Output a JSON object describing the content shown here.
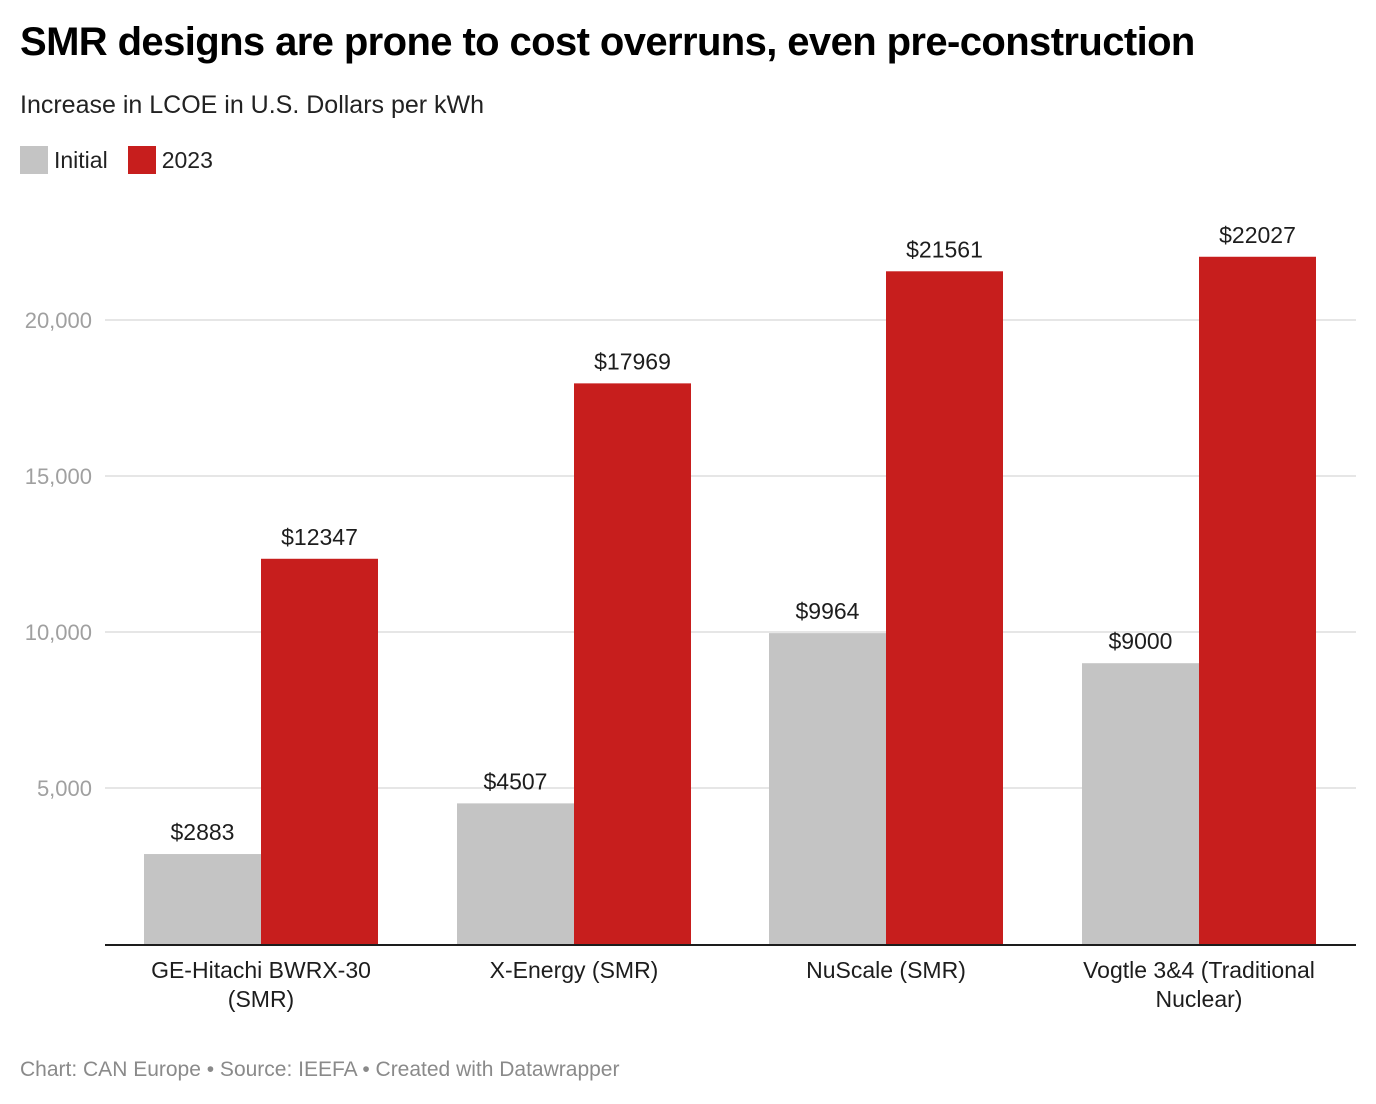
{
  "chart_data": {
    "type": "bar",
    "title": "SMR designs are prone to cost overruns, even pre-construction",
    "subtitle": "Increase in LCOE in U.S. Dollars per kWh",
    "xlabel": "",
    "ylabel": "",
    "categories": [
      [
        "GE-Hitachi BWRX-30",
        "(SMR)"
      ],
      [
        "X-Energy (SMR)"
      ],
      [
        "NuScale (SMR)"
      ],
      [
        "Vogtle 3&4 (Traditional",
        "Nuclear)"
      ]
    ],
    "category_names": [
      "GE-Hitachi BWRX-30 (SMR)",
      "X-Energy (SMR)",
      "NuScale (SMR)",
      "Vogtle 3&4 (Traditional Nuclear)"
    ],
    "series": [
      {
        "name": "Initial",
        "color": "#c4c4c4",
        "values": [
          2883,
          4507,
          9964,
          9000
        ],
        "labels": [
          "$2883",
          "$4507",
          "$9964",
          "$9000"
        ]
      },
      {
        "name": "2023",
        "color": "#c71e1d",
        "values": [
          12347,
          17969,
          21561,
          22027
        ],
        "labels": [
          "$12347",
          "$17969",
          "$21561",
          "$22027"
        ]
      }
    ],
    "ylim": [
      0,
      22027
    ],
    "yticks": [
      5000,
      10000,
      15000,
      20000
    ],
    "ytick_labels": [
      "5,000",
      "10,000",
      "15,000",
      "20,000"
    ],
    "grid": true,
    "legend_position": "top-left"
  },
  "footer": {
    "text": "Chart: CAN Europe • Source: IEEFA • Created with Datawrapper"
  },
  "colors": {
    "gridline": "#e6e6e6",
    "axis": "#1d1d1d",
    "tick_label": "#a0a0a0",
    "data_label": "#1d1d1d"
  }
}
